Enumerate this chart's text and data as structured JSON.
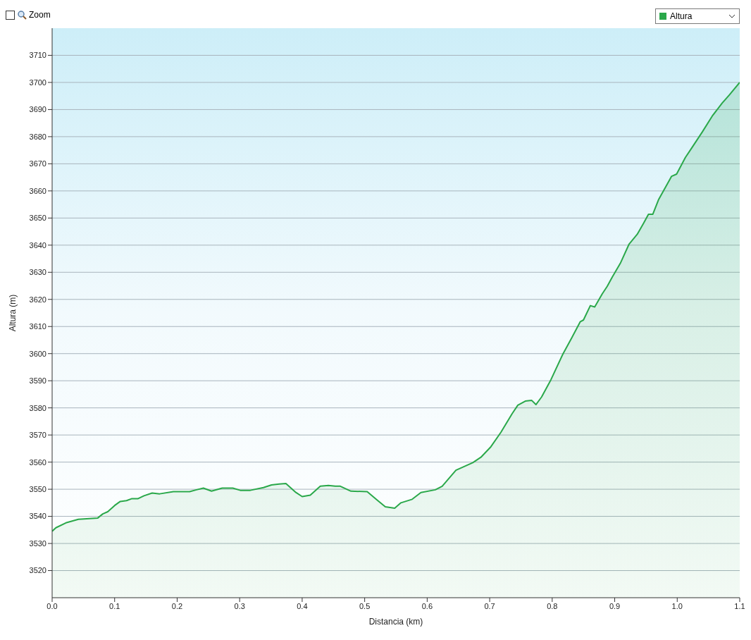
{
  "chart_data": {
    "type": "area",
    "xlabel": "Distancia  (km)",
    "ylabel": "Altura (m)",
    "annotations": [
      "Zoom"
    ],
    "x": [
      0,
      0.006,
      0.022,
      0.042,
      0.073,
      0.081,
      0.089,
      0.1,
      0.109,
      0.119,
      0.127,
      0.137,
      0.147,
      0.16,
      0.172,
      0.194,
      0.22,
      0.231,
      0.242,
      0.255,
      0.272,
      0.289,
      0.301,
      0.317,
      0.338,
      0.351,
      0.363,
      0.374,
      0.39,
      0.4,
      0.413,
      0.429,
      0.442,
      0.453,
      0.461,
      0.478,
      0.504,
      0.52,
      0.533,
      0.548,
      0.558,
      0.576,
      0.59,
      0.613,
      0.624,
      0.646,
      0.673,
      0.686,
      0.702,
      0.718,
      0.736,
      0.745,
      0.757,
      0.767,
      0.774,
      0.783,
      0.798,
      0.817,
      0.831,
      0.845,
      0.85,
      0.861,
      0.868,
      0.88,
      0.888,
      0.896,
      0.909,
      0.923,
      0.936,
      0.946,
      0.954,
      0.961,
      0.97,
      0.991,
      0.999,
      1.013,
      1.024,
      1.04,
      1.056,
      1.072,
      1.083,
      1.1
    ],
    "series": [
      {
        "name": "Altura",
        "color": "#2aa84a",
        "values": [
          3534.5,
          3535.8,
          3537.6,
          3538.9,
          3539.4,
          3540.9,
          3541.7,
          3544,
          3545.5,
          3545.8,
          3546.5,
          3546.5,
          3547.6,
          3548.6,
          3548.3,
          3549.1,
          3549.1,
          3549.8,
          3550.4,
          3549.3,
          3550.4,
          3550.4,
          3549.6,
          3549.6,
          3550.6,
          3551.6,
          3551.9,
          3552.1,
          3548.8,
          3547.3,
          3547.8,
          3551.1,
          3551.4,
          3551.1,
          3551.1,
          3549.3,
          3549.1,
          3546,
          3543.5,
          3543,
          3545,
          3546.3,
          3548.8,
          3549.8,
          3551.1,
          3557,
          3559.8,
          3561.8,
          3565.7,
          3571,
          3577.9,
          3581,
          3582.5,
          3582.8,
          3581.2,
          3584,
          3590.4,
          3599.8,
          3605.7,
          3611.8,
          3612.4,
          3617.7,
          3617.2,
          3622,
          3624.8,
          3628.2,
          3633.3,
          3640.4,
          3644,
          3648,
          3651.4,
          3651.4,
          3656.7,
          3665.4,
          3666.2,
          3672.3,
          3676.1,
          3681.7,
          3687.6,
          3692.4,
          3695.3,
          3700
        ]
      }
    ],
    "xlim": [
      0,
      1.1
    ],
    "xticks": [
      {
        "value": 0,
        "label": "0.0"
      },
      0.1,
      0.2,
      0.3,
      0.4,
      0.5,
      0.6,
      0.7,
      0.8,
      0.9,
      {
        "value": 1,
        "label": "1.0"
      },
      1.1
    ],
    "ylim": [
      3510,
      3720
    ],
    "yticks": [
      3520,
      3530,
      3540,
      3550,
      3560,
      3570,
      3580,
      3590,
      3600,
      3610,
      3620,
      3630,
      3640,
      3650,
      3660,
      3670,
      3680,
      3690,
      3700,
      3710
    ],
    "grid": "y",
    "legend": "top right"
  }
}
